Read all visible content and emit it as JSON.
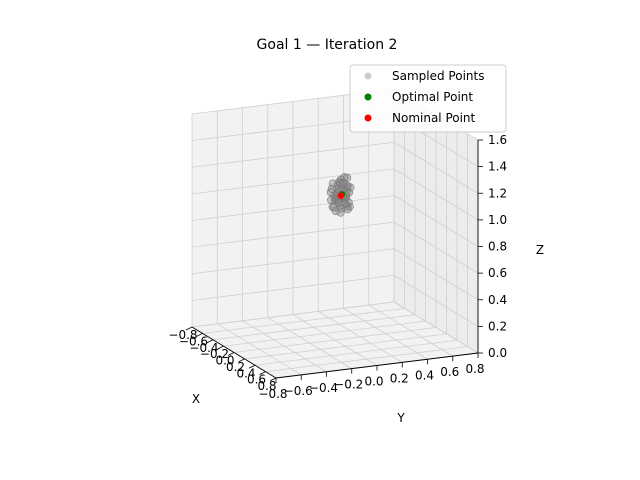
{
  "chart_data": {
    "type": "scatter",
    "projection": "3d",
    "title": "Goal 1 — Iteration 2",
    "xlabel": "X",
    "ylabel": "Y",
    "zlabel": "Z",
    "xlim": [
      -0.8,
      0.8
    ],
    "ylim": [
      -0.8,
      0.8
    ],
    "zlim": [
      0.0,
      1.6
    ],
    "x_ticks": [
      "−0.8",
      "−0.6",
      "−0.4",
      "−0.2",
      "0.0",
      "0.2",
      "0.4",
      "0.6",
      "0.8"
    ],
    "y_ticks": [
      "−0.8",
      "−0.6",
      "−0.4",
      "−0.2",
      "0.0",
      "0.2",
      "0.4",
      "0.6",
      "0.8"
    ],
    "z_ticks": [
      "0.0",
      "0.2",
      "0.4",
      "0.6",
      "0.8",
      "1.0",
      "1.2",
      "1.4",
      "1.6"
    ],
    "grid": true,
    "legend_position": "top-right",
    "legend": [
      {
        "label": "Sampled Points",
        "color": "#aaaaaa",
        "alpha": 0.6
      },
      {
        "label": "Optimal Point",
        "color": "#008000"
      },
      {
        "label": "Nominal Point",
        "color": "#ff0000"
      }
    ],
    "series": [
      {
        "name": "Sampled Points",
        "color": "#888888",
        "points": [
          [
            -0.12,
            -0.04,
            1.12
          ],
          [
            -0.1,
            0.02,
            1.16
          ],
          [
            -0.14,
            0.0,
            1.05
          ],
          [
            -0.08,
            -0.05,
            1.2
          ],
          [
            -0.11,
            0.04,
            1.09
          ],
          [
            -0.13,
            -0.02,
            1.22
          ],
          [
            -0.09,
            0.01,
            1.01
          ],
          [
            -0.12,
            0.06,
            1.13
          ],
          [
            -0.07,
            -0.03,
            1.07
          ],
          [
            -0.15,
            0.03,
            1.18
          ],
          [
            -0.1,
            -0.06,
            1.03
          ],
          [
            -0.11,
            0.05,
            1.24
          ],
          [
            -0.13,
            -0.01,
            0.99
          ],
          [
            -0.09,
            0.03,
            1.15
          ],
          [
            -0.12,
            -0.05,
            1.1
          ],
          [
            -0.08,
            0.0,
            1.12
          ],
          [
            -0.14,
            0.05,
            1.06
          ],
          [
            -0.1,
            -0.02,
            1.19
          ],
          [
            -0.11,
            0.07,
            1.02
          ],
          [
            -0.09,
            -0.07,
            1.14
          ],
          [
            -0.13,
            0.02,
            1.25
          ],
          [
            -0.07,
            0.02,
            1.08
          ],
          [
            -0.15,
            -0.03,
            1.11
          ],
          [
            -0.1,
            0.04,
            1.04
          ],
          [
            -0.12,
            -0.03,
            1.17
          ],
          [
            -0.08,
            0.06,
            1.13
          ],
          [
            -0.11,
            -0.04,
            1.0
          ],
          [
            -0.14,
            0.01,
            1.21
          ],
          [
            -0.09,
            -0.01,
            1.06
          ],
          [
            -0.12,
            0.03,
            1.09
          ],
          [
            -0.1,
            0.08,
            1.16
          ],
          [
            -0.13,
            -0.06,
            1.12
          ],
          [
            -0.11,
            0.0,
            1.23
          ],
          [
            -0.08,
            -0.04,
            1.02
          ],
          [
            -0.12,
            0.05,
            1.18
          ],
          [
            -0.1,
            -0.02,
            1.08
          ],
          [
            -0.14,
            -0.04,
            1.14
          ],
          [
            -0.09,
            0.05,
            1.1
          ],
          [
            -0.11,
            -0.07,
            1.17
          ],
          [
            -0.13,
            0.04,
            1.03
          ],
          [
            -0.1,
            0.0,
            1.2
          ],
          [
            -0.12,
            -0.02,
            1.06
          ],
          [
            -0.08,
            0.03,
            1.19
          ],
          [
            -0.11,
            0.02,
            1.11
          ],
          [
            -0.06,
            0.01,
            1.14
          ],
          [
            -0.16,
            0.0,
            1.12
          ],
          [
            -0.1,
            0.06,
            1.0
          ],
          [
            -0.12,
            -0.08,
            1.09
          ]
        ]
      },
      {
        "name": "Optimal Point",
        "color": "#008000",
        "points": [
          [
            -0.11,
            0.01,
            1.12
          ]
        ]
      },
      {
        "name": "Nominal Point",
        "color": "#ff0000",
        "points": [
          [
            -0.11,
            0.0,
            1.11
          ]
        ]
      }
    ]
  }
}
